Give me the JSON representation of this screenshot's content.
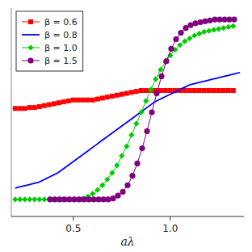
{
  "chart_data": {
    "type": "line",
    "xlabel": "aλ",
    "xlim": [
      0.18,
      1.38
    ],
    "ylim": [
      -0.05,
      1.05
    ],
    "xticks": [
      0.5,
      {
        "value": 1.0,
        "label": "1.0"
      }
    ],
    "yticks": [],
    "tick_labels": "x",
    "grid": false,
    "legend": "upper-left",
    "series": [
      {
        "name": "β = 0.6",
        "color": "#ff0000",
        "marker": "square",
        "line_style": "solid",
        "x": [
          0.2,
          0.225,
          0.25,
          0.275,
          0.3,
          0.325,
          0.35,
          0.375,
          0.4,
          0.425,
          0.45,
          0.475,
          0.5,
          0.525,
          0.55,
          0.575,
          0.6,
          0.625,
          0.65,
          0.675,
          0.7,
          0.725,
          0.75,
          0.775,
          0.8,
          0.825,
          0.85,
          0.875,
          0.9,
          0.925,
          0.95,
          0.975,
          1.0,
          1.025,
          1.05,
          1.075,
          1.1,
          1.125,
          1.15,
          1.175,
          1.2,
          1.225,
          1.25,
          1.275,
          1.3,
          1.325
        ],
        "values": [
          0.52,
          0.52,
          0.52,
          0.525,
          0.525,
          0.53,
          0.535,
          0.54,
          0.545,
          0.55,
          0.555,
          0.56,
          0.565,
          0.565,
          0.565,
          0.565,
          0.565,
          0.57,
          0.575,
          0.58,
          0.585,
          0.59,
          0.595,
          0.6,
          0.605,
          0.61,
          0.615,
          0.615,
          0.615,
          0.615,
          0.615,
          0.615,
          0.615,
          0.615,
          0.615,
          0.615,
          0.615,
          0.615,
          0.615,
          0.615,
          0.615,
          0.615,
          0.615,
          0.615,
          0.615,
          0.615
        ]
      },
      {
        "name": "β = 0.8",
        "color": "#0000ff",
        "line_style": "solid",
        "x": [
          0.2,
          0.22,
          0.24,
          0.26,
          0.28,
          0.3,
          0.32,
          0.34,
          0.36,
          0.38,
          0.4,
          0.42,
          0.44,
          0.46,
          0.48,
          0.5,
          0.52,
          0.54,
          0.56,
          0.58,
          0.6,
          0.62,
          0.64,
          0.66,
          0.68,
          0.7,
          0.72,
          0.74,
          0.76,
          0.78,
          0.8,
          0.82,
          0.84,
          0.86,
          0.88,
          0.9,
          0.92,
          0.94,
          0.96,
          0.98,
          1.0,
          1.02,
          1.04,
          1.06,
          1.08,
          1.1,
          1.12,
          1.14,
          1.16,
          1.18,
          1.2,
          1.22,
          1.24,
          1.26,
          1.28,
          1.3,
          1.32,
          1.34,
          1.36
        ],
        "values": [
          0.1,
          0.105,
          0.11,
          0.115,
          0.12,
          0.125,
          0.13,
          0.14,
          0.15,
          0.16,
          0.17,
          0.18,
          0.195,
          0.21,
          0.225,
          0.24,
          0.255,
          0.27,
          0.285,
          0.3,
          0.315,
          0.33,
          0.345,
          0.36,
          0.375,
          0.39,
          0.405,
          0.42,
          0.435,
          0.45,
          0.465,
          0.48,
          0.495,
          0.51,
          0.525,
          0.54,
          0.555,
          0.565,
          0.575,
          0.585,
          0.595,
          0.605,
          0.615,
          0.625,
          0.635,
          0.645,
          0.65,
          0.655,
          0.66,
          0.665,
          0.67,
          0.675,
          0.68,
          0.685,
          0.69,
          0.695,
          0.7,
          0.705,
          0.71
        ]
      },
      {
        "name": "β = 1.0",
        "color": "#00cc00",
        "marker": "diamond",
        "line_style": "solid",
        "x": [
          0.2,
          0.225,
          0.25,
          0.275,
          0.3,
          0.325,
          0.35,
          0.375,
          0.4,
          0.425,
          0.45,
          0.475,
          0.5,
          0.525,
          0.55,
          0.575,
          0.6,
          0.625,
          0.65,
          0.675,
          0.7,
          0.725,
          0.75,
          0.775,
          0.8,
          0.825,
          0.85,
          0.875,
          0.9,
          0.925,
          0.95,
          0.975,
          1.0,
          1.025,
          1.05,
          1.075,
          1.1,
          1.125,
          1.15,
          1.175,
          1.2,
          1.225,
          1.25,
          1.275,
          1.3,
          1.325
        ],
        "values": [
          0.04,
          0.04,
          0.04,
          0.04,
          0.04,
          0.04,
          0.04,
          0.04,
          0.04,
          0.04,
          0.04,
          0.04,
          0.04,
          0.04,
          0.045,
          0.055,
          0.07,
          0.09,
          0.115,
          0.145,
          0.18,
          0.22,
          0.27,
          0.32,
          0.38,
          0.44,
          0.5,
          0.56,
          0.62,
          0.675,
          0.725,
          0.765,
          0.8,
          0.83,
          0.855,
          0.875,
          0.89,
          0.905,
          0.915,
          0.925,
          0.93,
          0.935,
          0.94,
          0.945,
          0.95,
          0.955
        ]
      },
      {
        "name": "β = 1.5",
        "color": "#800080",
        "marker": "circle",
        "line_style": "solid",
        "x": [
          0.38,
          0.405,
          0.43,
          0.455,
          0.48,
          0.505,
          0.53,
          0.555,
          0.58,
          0.605,
          0.63,
          0.655,
          0.68,
          0.705,
          0.73,
          0.755,
          0.78,
          0.805,
          0.83,
          0.855,
          0.88,
          0.905,
          0.93,
          0.955,
          0.98,
          1.005,
          1.03,
          1.055,
          1.08,
          1.105,
          1.13,
          1.155,
          1.18,
          1.205,
          1.23,
          1.255,
          1.28,
          1.305,
          1.33
        ],
        "values": [
          0.04,
          0.04,
          0.04,
          0.04,
          0.04,
          0.04,
          0.04,
          0.04,
          0.04,
          0.04,
          0.04,
          0.04,
          0.04,
          0.045,
          0.06,
          0.08,
          0.115,
          0.165,
          0.23,
          0.31,
          0.4,
          0.5,
          0.6,
          0.69,
          0.77,
          0.835,
          0.885,
          0.92,
          0.945,
          0.96,
          0.97,
          0.975,
          0.98,
          0.985,
          0.99,
          0.99,
          0.99,
          0.99,
          0.99
        ]
      }
    ]
  }
}
